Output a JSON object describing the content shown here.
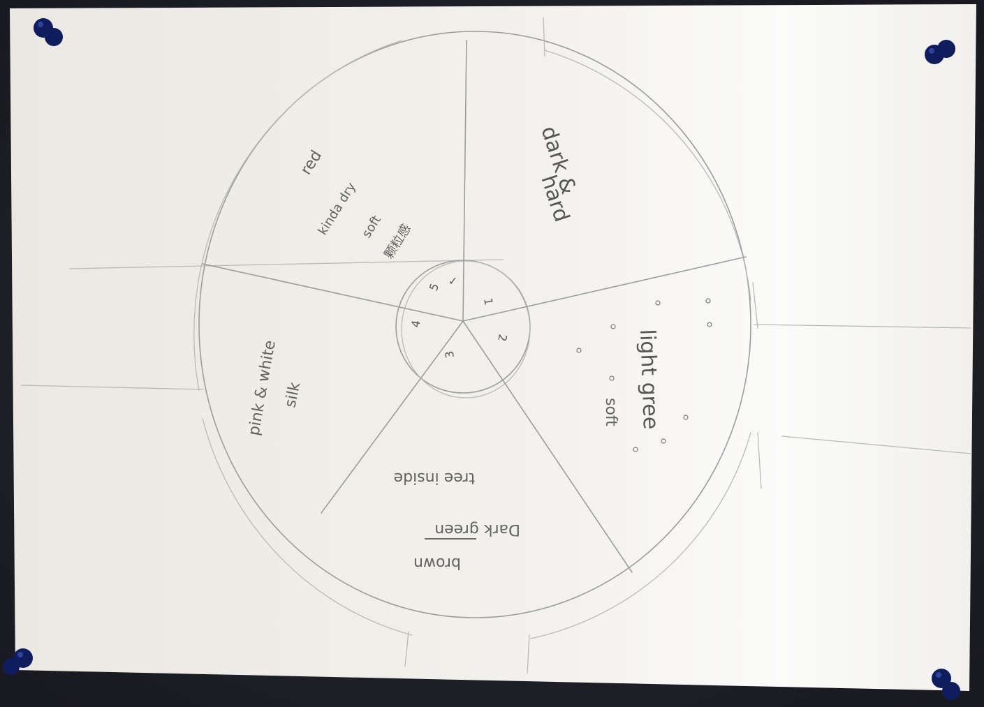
{
  "sketch": {
    "segments": [
      {
        "number": "1",
        "lines": [
          "dark &",
          "hard"
        ]
      },
      {
        "number": "2",
        "lines": [
          "light gree",
          "soft"
        ]
      },
      {
        "number": "3",
        "lines": [
          "tree inside",
          "Dark green",
          "brown"
        ]
      },
      {
        "number": "4",
        "lines": [
          "pink & white",
          "silk"
        ]
      },
      {
        "number": "5",
        "lines": [
          "red",
          "kinda dry",
          "soft",
          "颗粒感"
        ]
      }
    ],
    "center_mark": "✓"
  }
}
